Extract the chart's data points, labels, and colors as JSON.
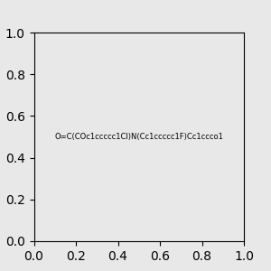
{
  "smiles": "O=C(COc1ccccc1Cl)N(Cc1ccccc1F)Cc1ccco1",
  "background_color": "#e8e8e8",
  "figsize": [
    3.0,
    3.0
  ],
  "dpi": 100
}
